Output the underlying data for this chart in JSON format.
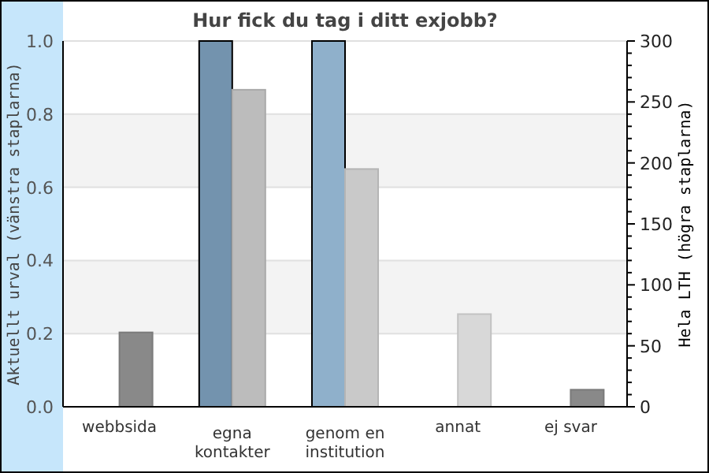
{
  "chart_data": {
    "type": "bar",
    "title": "Hur fick du tag i ditt exjobb?",
    "ylabel": "Aktuellt urval (vänstra staplarna)",
    "y2label": "Hela LTH (högra staplarna)",
    "categories": [
      "webbsida",
      "egna\nkontakter",
      "genom en\ninstitution",
      "annat",
      "ej svar"
    ],
    "series": [
      {
        "colors": [
          "#7393ae",
          "#7393ae",
          "#8fb0cb",
          "#8fb0cb",
          "#8fb0cb"
        ],
        "values": [
          0,
          1.0,
          1.0,
          0,
          0
        ]
      },
      {
        "axis": "y2",
        "colors": [
          "#898989",
          "#bcbcbc",
          "#c9c9c9",
          "#d8d8d8",
          "#898989"
        ],
        "values": [
          61,
          260,
          195,
          76,
          14
        ]
      }
    ],
    "ylim": [
      0,
      1
    ],
    "yticks": [
      {
        "value": 0,
        "label": "0.0"
      },
      {
        "value": 0.2,
        "label": "0.2"
      },
      {
        "value": 0.4,
        "label": "0.4"
      },
      {
        "value": 0.6,
        "label": "0.6"
      },
      {
        "value": 0.8,
        "label": "0.8"
      },
      {
        "value": 1,
        "label": "1.0"
      }
    ],
    "y2lim": [
      0,
      300
    ],
    "y2ticks": [
      0,
      {
        "value": 10,
        "label": null
      },
      {
        "value": 20,
        "label": null
      },
      {
        "value": 30,
        "label": null
      },
      {
        "value": 40,
        "label": null
      },
      50,
      {
        "value": 60,
        "label": null
      },
      {
        "value": 70,
        "label": null
      },
      {
        "value": 80,
        "label": null
      },
      {
        "value": 90,
        "label": null
      },
      100,
      {
        "value": 110,
        "label": null
      },
      {
        "value": 120,
        "label": null
      },
      {
        "value": 130,
        "label": null
      },
      {
        "value": 140,
        "label": null
      },
      150,
      {
        "value": 160,
        "label": null
      },
      {
        "value": 170,
        "label": null
      },
      {
        "value": 180,
        "label": null
      },
      {
        "value": 190,
        "label": null
      },
      200,
      {
        "value": 210,
        "label": null
      },
      {
        "value": 220,
        "label": null
      },
      {
        "value": 230,
        "label": null
      },
      {
        "value": 240,
        "label": null
      },
      250,
      {
        "value": 260,
        "label": null
      },
      {
        "value": 270,
        "label": null
      },
      {
        "value": 280,
        "label": null
      },
      {
        "value": 290,
        "label": null
      },
      300
    ],
    "grid": "y"
  }
}
